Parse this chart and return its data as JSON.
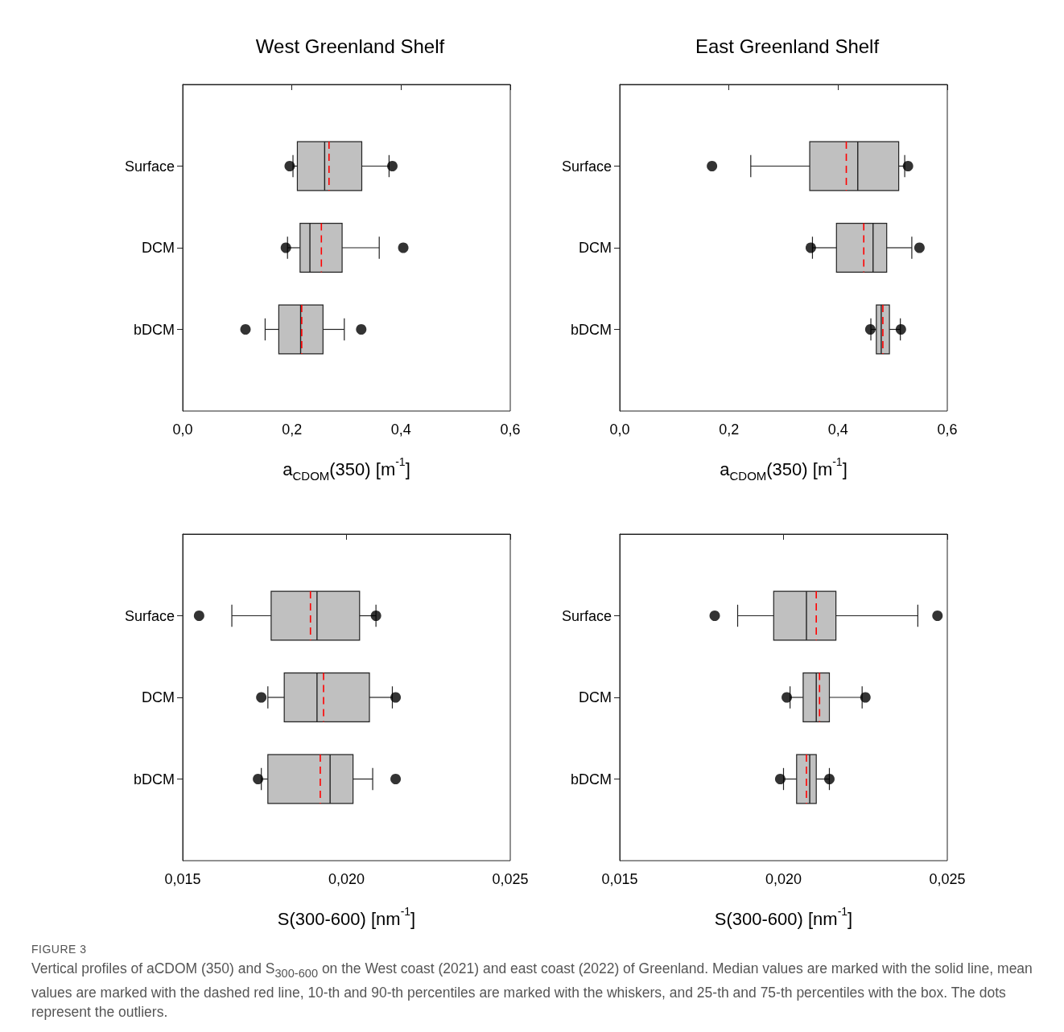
{
  "chart_data": [
    {
      "type": "box",
      "orientation": "horizontal",
      "title": "West Greenland Shelf",
      "xlabel": "a$_{CDOM}$(350) [m$^{-1}$]",
      "categories": [
        "Surface",
        "DCM",
        "bDCM"
      ],
      "xlim": [
        0,
        0.6
      ],
      "xticks": [
        {
          "value": 0,
          "label": "0,0"
        },
        {
          "value": 0.2,
          "label": "0,2"
        },
        {
          "value": 0.4,
          "label": "0,4"
        },
        {
          "value": 0.6,
          "label": "0,6"
        }
      ],
      "series": [
        {
          "color": "#c0c0c0",
          "boxes": [
            {
              "low": 0.202,
              "q1": 0.21,
              "median": 0.26,
              "q3": 0.328,
              "high": 0.378,
              "mean": 0.268,
              "outliers": [
                0.196,
                0.384
              ]
            },
            {
              "low": 0.192,
              "q1": 0.215,
              "median": 0.233,
              "q3": 0.292,
              "high": 0.36,
              "mean": 0.254,
              "outliers": [
                0.189,
                0.404
              ]
            },
            {
              "low": 0.151,
              "q1": 0.176,
              "median": 0.216,
              "q3": 0.257,
              "high": 0.296,
              "mean": 0.218,
              "outliers": [
                0.115,
                0.327
              ]
            }
          ]
        }
      ]
    },
    {
      "type": "box",
      "orientation": "horizontal",
      "title": "East Greenland Shelf",
      "xlabel": "a$_{CDOM}$(350) [m$^{-1}$]",
      "categories": [
        "Surface",
        "DCM",
        "bDCM"
      ],
      "xlim": [
        0,
        0.6
      ],
      "xticks": [
        {
          "value": 0,
          "label": "0,0"
        },
        {
          "value": 0.2,
          "label": "0,2"
        },
        {
          "value": 0.4,
          "label": "0,4"
        },
        {
          "value": 0.6,
          "label": "0,6"
        }
      ],
      "series": [
        {
          "color": "#c0c0c0",
          "boxes": [
            {
              "low": 0.24,
              "q1": 0.348,
              "median": 0.436,
              "q3": 0.511,
              "high": 0.522,
              "mean": 0.415,
              "outliers": [
                0.169,
                0.528
              ]
            },
            {
              "low": 0.353,
              "q1": 0.397,
              "median": 0.464,
              "q3": 0.489,
              "high": 0.535,
              "mean": 0.447,
              "outliers": [
                0.35,
                0.549
              ]
            },
            {
              "low": 0.46,
              "q1": 0.47,
              "median": 0.479,
              "q3": 0.494,
              "high": 0.514,
              "mean": 0.482,
              "outliers": [
                0.459,
                0.515
              ]
            }
          ]
        }
      ]
    },
    {
      "type": "box",
      "orientation": "horizontal",
      "xlabel": "S(300-600) [nm$^{-1}$]",
      "categories": [
        "Surface",
        "DCM",
        "bDCM"
      ],
      "xlim": [
        0.015,
        0.025
      ],
      "xticks": [
        {
          "value": 0.015,
          "label": "0,015"
        },
        {
          "value": 0.02,
          "label": "0,020"
        },
        {
          "value": 0.025,
          "label": "0,025"
        }
      ],
      "series": [
        {
          "color": "#c0c0c0",
          "boxes": [
            {
              "low": 0.0165,
              "q1": 0.0177,
              "median": 0.0191,
              "q3": 0.0204,
              "high": 0.0209,
              "mean": 0.0189,
              "outliers": [
                0.0155,
                0.0209
              ]
            },
            {
              "low": 0.0176,
              "q1": 0.0181,
              "median": 0.0191,
              "q3": 0.0207,
              "high": 0.0214,
              "mean": 0.0193,
              "outliers": [
                0.0174,
                0.0215
              ]
            },
            {
              "low": 0.0174,
              "q1": 0.0176,
              "median": 0.0195,
              "q3": 0.0202,
              "high": 0.0208,
              "mean": 0.0192,
              "outliers": [
                0.0173,
                0.0215
              ]
            }
          ]
        }
      ]
    },
    {
      "type": "box",
      "orientation": "horizontal",
      "xlabel": "S(300-600) [nm$^{-1}$]",
      "categories": [
        "Surface",
        "DCM",
        "bDCM"
      ],
      "xlim": [
        0.015,
        0.025
      ],
      "xticks": [
        {
          "value": 0.015,
          "label": "0,015"
        },
        {
          "value": 0.02,
          "label": "0,020"
        },
        {
          "value": 0.025,
          "label": "0,025"
        }
      ],
      "series": [
        {
          "color": "#c0c0c0",
          "boxes": [
            {
              "low": 0.0186,
              "q1": 0.0197,
              "median": 0.0207,
              "q3": 0.0216,
              "high": 0.0241,
              "mean": 0.021,
              "outliers": [
                0.0179,
                0.0247
              ]
            },
            {
              "low": 0.0202,
              "q1": 0.0206,
              "median": 0.021,
              "q3": 0.0214,
              "high": 0.0224,
              "mean": 0.0211,
              "outliers": [
                0.0201,
                0.0225
              ]
            },
            {
              "low": 0.02,
              "q1": 0.0204,
              "median": 0.0208,
              "q3": 0.021,
              "high": 0.0214,
              "mean": 0.0207,
              "outliers": [
                0.0199,
                0.0214
              ]
            }
          ]
        }
      ],
      "annotations": [
        "FIGURE 3",
        "Vertical profiles of aCDOM (350) and S$_{300-600}$ on the West coast (2021) and east coast (2022) of Greenland. Median values are marked with the solid line, mean values are marked with the dashed red line, 10-th and 90-th percentiles are marked with the whiskers, and 25-th and 75-th percentiles with the box. The dots represent the outliers."
      ]
    }
  ]
}
